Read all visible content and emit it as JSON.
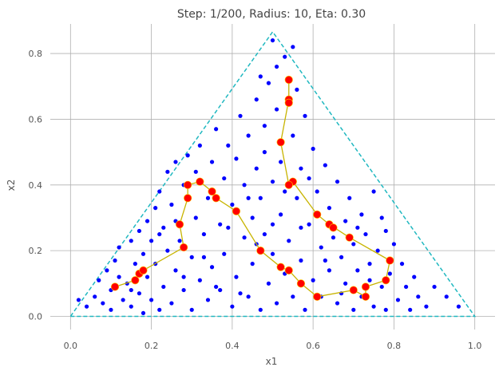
{
  "chart_data": {
    "type": "scatter",
    "title": "Step: 1/200, Radius: 10, Eta: 0.30",
    "xlabel": "x1",
    "ylabel": "x2",
    "xlim": [
      -0.05,
      1.05
    ],
    "ylim": [
      -0.04,
      0.89
    ],
    "xticks": [
      "0.0",
      "0.2",
      "0.4",
      "0.6",
      "0.8",
      "1.0"
    ],
    "yticks": [
      "0.0",
      "0.2",
      "0.4",
      "0.6",
      "0.8"
    ],
    "grid": true,
    "colors": {
      "triangle": "#20b8c0",
      "points": "#0000ff",
      "path": "#c8b400",
      "nodes": "#ff0000",
      "grid": "#b0b0b0"
    },
    "triangle": [
      [
        0.0,
        0.0
      ],
      [
        1.0,
        0.0
      ],
      [
        0.5,
        0.866
      ]
    ],
    "path": [
      [
        0.11,
        0.09
      ],
      [
        0.16,
        0.11
      ],
      [
        0.17,
        0.13
      ],
      [
        0.18,
        0.14
      ],
      [
        0.28,
        0.21
      ],
      [
        0.27,
        0.28
      ],
      [
        0.29,
        0.36
      ],
      [
        0.29,
        0.4
      ],
      [
        0.32,
        0.41
      ],
      [
        0.35,
        0.38
      ],
      [
        0.36,
        0.36
      ],
      [
        0.41,
        0.32
      ],
      [
        0.47,
        0.2
      ],
      [
        0.52,
        0.15
      ],
      [
        0.54,
        0.14
      ],
      [
        0.57,
        0.1
      ],
      [
        0.61,
        0.06
      ],
      [
        0.7,
        0.08
      ],
      [
        0.73,
        0.06
      ],
      [
        0.73,
        0.09
      ],
      [
        0.78,
        0.11
      ],
      [
        0.79,
        0.17
      ],
      [
        0.69,
        0.24
      ],
      [
        0.64,
        0.28
      ],
      [
        0.65,
        0.27
      ],
      [
        0.61,
        0.31
      ],
      [
        0.55,
        0.41
      ],
      [
        0.54,
        0.4
      ],
      [
        0.52,
        0.53
      ],
      [
        0.54,
        0.66
      ],
      [
        0.54,
        0.65
      ],
      [
        0.54,
        0.72
      ]
    ],
    "points": [
      [
        0.02,
        0.05
      ],
      [
        0.04,
        0.03
      ],
      [
        0.06,
        0.06
      ],
      [
        0.07,
        0.11
      ],
      [
        0.08,
        0.04
      ],
      [
        0.09,
        0.14
      ],
      [
        0.1,
        0.02
      ],
      [
        0.1,
        0.08
      ],
      [
        0.11,
        0.17
      ],
      [
        0.12,
        0.12
      ],
      [
        0.12,
        0.21
      ],
      [
        0.13,
        0.05
      ],
      [
        0.14,
        0.1
      ],
      [
        0.15,
        0.03
      ],
      [
        0.15,
        0.23
      ],
      [
        0.16,
        0.16
      ],
      [
        0.17,
        0.26
      ],
      [
        0.17,
        0.07
      ],
      [
        0.18,
        0.01
      ],
      [
        0.18,
        0.19
      ],
      [
        0.19,
        0.12
      ],
      [
        0.19,
        0.29
      ],
      [
        0.2,
        0.05
      ],
      [
        0.2,
        0.23
      ],
      [
        0.21,
        0.33
      ],
      [
        0.21,
        0.16
      ],
      [
        0.22,
        0.02
      ],
      [
        0.22,
        0.38
      ],
      [
        0.23,
        0.09
      ],
      [
        0.23,
        0.27
      ],
      [
        0.24,
        0.2
      ],
      [
        0.24,
        0.44
      ],
      [
        0.25,
        0.04
      ],
      [
        0.25,
        0.34
      ],
      [
        0.26,
        0.14
      ],
      [
        0.26,
        0.47
      ],
      [
        0.27,
        0.23
      ],
      [
        0.28,
        0.08
      ],
      [
        0.28,
        0.4
      ],
      [
        0.29,
        0.49
      ],
      [
        0.3,
        0.02
      ],
      [
        0.3,
        0.18
      ],
      [
        0.31,
        0.3
      ],
      [
        0.31,
        0.44
      ],
      [
        0.32,
        0.11
      ],
      [
        0.32,
        0.52
      ],
      [
        0.33,
        0.25
      ],
      [
        0.34,
        0.05
      ],
      [
        0.34,
        0.36
      ],
      [
        0.35,
        0.15
      ],
      [
        0.35,
        0.47
      ],
      [
        0.36,
        0.57
      ],
      [
        0.37,
        0.08
      ],
      [
        0.37,
        0.28
      ],
      [
        0.38,
        0.42
      ],
      [
        0.38,
        0.19
      ],
      [
        0.39,
        0.52
      ],
      [
        0.4,
        0.03
      ],
      [
        0.4,
        0.34
      ],
      [
        0.41,
        0.12
      ],
      [
        0.41,
        0.48
      ],
      [
        0.42,
        0.61
      ],
      [
        0.43,
        0.24
      ],
      [
        0.43,
        0.4
      ],
      [
        0.44,
        0.06
      ],
      [
        0.44,
        0.55
      ],
      [
        0.45,
        0.3
      ],
      [
        0.45,
        0.16
      ],
      [
        0.46,
        0.45
      ],
      [
        0.46,
        0.66
      ],
      [
        0.47,
        0.02
      ],
      [
        0.47,
        0.36
      ],
      [
        0.48,
        0.25
      ],
      [
        0.48,
        0.58
      ],
      [
        0.49,
        0.1
      ],
      [
        0.49,
        0.71
      ],
      [
        0.5,
        0.41
      ],
      [
        0.5,
        0.19
      ],
      [
        0.51,
        0.63
      ],
      [
        0.51,
        0.04
      ],
      [
        0.52,
        0.31
      ],
      [
        0.52,
        0.47
      ],
      [
        0.53,
        0.79
      ],
      [
        0.53,
        0.13
      ],
      [
        0.54,
        0.23
      ],
      [
        0.55,
        0.55
      ],
      [
        0.55,
        0.06
      ],
      [
        0.56,
        0.36
      ],
      [
        0.56,
        0.69
      ],
      [
        0.57,
        0.17
      ],
      [
        0.57,
        0.45
      ],
      [
        0.58,
        0.61
      ],
      [
        0.58,
        0.02
      ],
      [
        0.59,
        0.28
      ],
      [
        0.6,
        0.11
      ],
      [
        0.6,
        0.51
      ],
      [
        0.61,
        0.38
      ],
      [
        0.62,
        0.21
      ],
      [
        0.62,
        0.06
      ],
      [
        0.63,
        0.46
      ],
      [
        0.64,
        0.14
      ],
      [
        0.64,
        0.33
      ],
      [
        0.65,
        0.24
      ],
      [
        0.66,
        0.04
      ],
      [
        0.66,
        0.41
      ],
      [
        0.67,
        0.18
      ],
      [
        0.68,
        0.29
      ],
      [
        0.68,
        0.1
      ],
      [
        0.69,
        0.36
      ],
      [
        0.7,
        0.02
      ],
      [
        0.7,
        0.22
      ],
      [
        0.71,
        0.14
      ],
      [
        0.72,
        0.31
      ],
      [
        0.72,
        0.06
      ],
      [
        0.73,
        0.25
      ],
      [
        0.74,
        0.16
      ],
      [
        0.75,
        0.03
      ],
      [
        0.75,
        0.38
      ],
      [
        0.76,
        0.2
      ],
      [
        0.77,
        0.09
      ],
      [
        0.77,
        0.3
      ],
      [
        0.78,
        0.02
      ],
      [
        0.79,
        0.13
      ],
      [
        0.8,
        0.22
      ],
      [
        0.81,
        0.05
      ],
      [
        0.82,
        0.16
      ],
      [
        0.83,
        0.09
      ],
      [
        0.84,
        0.02
      ],
      [
        0.85,
        0.12
      ],
      [
        0.86,
        0.06
      ],
      [
        0.88,
        0.03
      ],
      [
        0.9,
        0.09
      ],
      [
        0.93,
        0.06
      ],
      [
        0.96,
        0.03
      ],
      [
        0.15,
        0.08
      ],
      [
        0.26,
        0.29
      ],
      [
        0.33,
        0.18
      ],
      [
        0.39,
        0.27
      ],
      [
        0.42,
        0.07
      ],
      [
        0.46,
        0.22
      ],
      [
        0.5,
        0.28
      ],
      [
        0.53,
        0.38
      ],
      [
        0.57,
        0.27
      ],
      [
        0.59,
        0.42
      ],
      [
        0.63,
        0.17
      ],
      [
        0.67,
        0.07
      ],
      [
        0.71,
        0.27
      ],
      [
        0.74,
        0.11
      ],
      [
        0.78,
        0.26
      ],
      [
        0.48,
        0.5
      ],
      [
        0.51,
        0.76
      ],
      [
        0.47,
        0.73
      ],
      [
        0.55,
        0.82
      ],
      [
        0.5,
        0.84
      ],
      [
        0.44,
        0.36
      ],
      [
        0.36,
        0.09
      ],
      [
        0.28,
        0.12
      ],
      [
        0.22,
        0.25
      ]
    ]
  }
}
